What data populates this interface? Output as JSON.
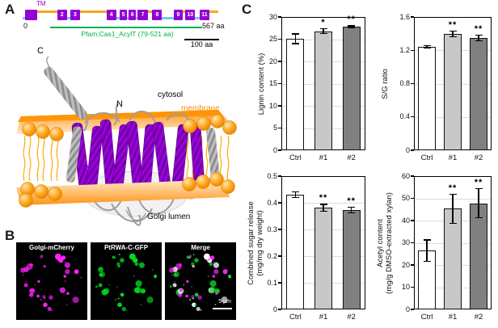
{
  "panels": {
    "a": "A",
    "b": "B",
    "c": "C"
  },
  "domain_diagram": {
    "tm_label": "TM",
    "start_label": "0",
    "end_label": "567 aa",
    "pfam_label": "Pfam:Cas1_AcylT (79-521 aa)",
    "pfam_range_aa": [
      79,
      521
    ],
    "scale_label": "100 aa",
    "scale_aa": 100,
    "total_aa": 567,
    "colors": {
      "tm": "#9400d3",
      "cytosolic_linker": "#f5a81c",
      "lumenal_linker": "#74c8e8",
      "pfam": "#00b050"
    },
    "tm_boxes": [
      {
        "label": "",
        "start": 8,
        "end": 42
      },
      {
        "label": "2",
        "start": 100,
        "end": 128
      },
      {
        "label": "3",
        "start": 138,
        "end": 166
      },
      {
        "label": "4",
        "start": 243,
        "end": 271
      },
      {
        "label": "5",
        "start": 281,
        "end": 303
      },
      {
        "label": "6",
        "start": 307,
        "end": 329
      },
      {
        "label": "7",
        "start": 333,
        "end": 363
      },
      {
        "label": "8",
        "start": 376,
        "end": 404
      },
      {
        "label": "9",
        "start": 437,
        "end": 465
      },
      {
        "label": "10",
        "start": 472,
        "end": 500
      },
      {
        "label": "11",
        "start": 513,
        "end": 541
      }
    ],
    "linkers": [
      {
        "type": "lumenal",
        "start": 0,
        "end": 8
      },
      {
        "type": "cytosolic",
        "start": 42,
        "end": 100
      },
      {
        "type": "lumenal",
        "start": 128,
        "end": 138
      },
      {
        "type": "cytosolic",
        "start": 166,
        "end": 243
      },
      {
        "type": "lumenal",
        "start": 271,
        "end": 281
      },
      {
        "type": "lumenal",
        "start": 303,
        "end": 307
      },
      {
        "type": "lumenal",
        "start": 329,
        "end": 333
      },
      {
        "type": "cytosolic",
        "start": 363,
        "end": 376
      },
      {
        "type": "lumenal",
        "start": 404,
        "end": 437
      },
      {
        "type": "cytosolic",
        "start": 465,
        "end": 472
      },
      {
        "type": "lumenal",
        "start": 500,
        "end": 513
      },
      {
        "type": "cytosolic",
        "start": 541,
        "end": 567
      }
    ]
  },
  "structure": {
    "labels": {
      "c_terminus": "C",
      "n_terminus": "N",
      "cytosol": "cytosol",
      "membrane": "membrane",
      "tm": "TM",
      "golgi_lumen": "Golgi lumen"
    },
    "colors": {
      "membrane": "#ff8c00",
      "tm_helix": "#9400d3",
      "ribbon": "#9e9e9e"
    }
  },
  "microscopy": {
    "images": [
      {
        "title": "Golgi-mCherry",
        "channel_color": "#ff22ff"
      },
      {
        "title": "PtRWA-C-GFP",
        "channel_color": "#00dd22"
      },
      {
        "title": "Merge",
        "channel_color": "#ffffff"
      }
    ],
    "scale_bar_label": "5 µm"
  },
  "chart_data": [
    {
      "type": "bar",
      "ylabel_lines": [
        "Lignin content (%)"
      ],
      "categories": [
        "Ctrl",
        "#1",
        "#2"
      ],
      "values": [
        25.1,
        26.8,
        27.8
      ],
      "errors": [
        1.2,
        0.6,
        0.3
      ],
      "significance": [
        "",
        "*",
        "**"
      ],
      "ylim": [
        0,
        30
      ],
      "ytick_step": 5,
      "tick_decimals": 0,
      "bar_colors": [
        "#ffffff",
        "#c8c8c8",
        "#808080"
      ],
      "grid": true
    },
    {
      "type": "bar",
      "ylabel_lines": [
        "S/G ratio"
      ],
      "categories": [
        "Ctrl",
        "#1",
        "#2"
      ],
      "values": [
        1.24,
        1.4,
        1.35
      ],
      "errors": [
        0.02,
        0.04,
        0.04
      ],
      "significance": [
        "",
        "**",
        "**"
      ],
      "ylim": [
        0,
        1.6
      ],
      "ytick_step": 0.4,
      "tick_decimals": 1,
      "bar_colors": [
        "#ffffff",
        "#c8c8c8",
        "#808080"
      ],
      "grid": true
    },
    {
      "type": "bar",
      "ylabel_lines": [
        "Combined sugar release",
        "(mg/mg dry weight)"
      ],
      "categories": [
        "Ctrl",
        "#1",
        "#2"
      ],
      "values": [
        0.43,
        0.381,
        0.372
      ],
      "errors": [
        0.012,
        0.015,
        0.012
      ],
      "significance": [
        "",
        "**",
        "**"
      ],
      "ylim": [
        0,
        0.5
      ],
      "ytick_step": 0.1,
      "tick_decimals": 1,
      "bar_colors": [
        "#ffffff",
        "#c8c8c8",
        "#808080"
      ],
      "grid": true
    },
    {
      "type": "bar",
      "ylabel_lines": [
        "Acetyl content",
        "(mg/g DMSO-extracted xylan)"
      ],
      "categories": [
        "Ctrl",
        "#1",
        "#2"
      ],
      "values": [
        26.5,
        45.3,
        47.8
      ],
      "errors": [
        5.0,
        6.8,
        6.7
      ],
      "significance": [
        "",
        "**",
        "**"
      ],
      "ylim": [
        0,
        60
      ],
      "ytick_step": 10,
      "tick_decimals": 0,
      "bar_colors": [
        "#ffffff",
        "#c8c8c8",
        "#808080"
      ],
      "grid": true
    }
  ]
}
